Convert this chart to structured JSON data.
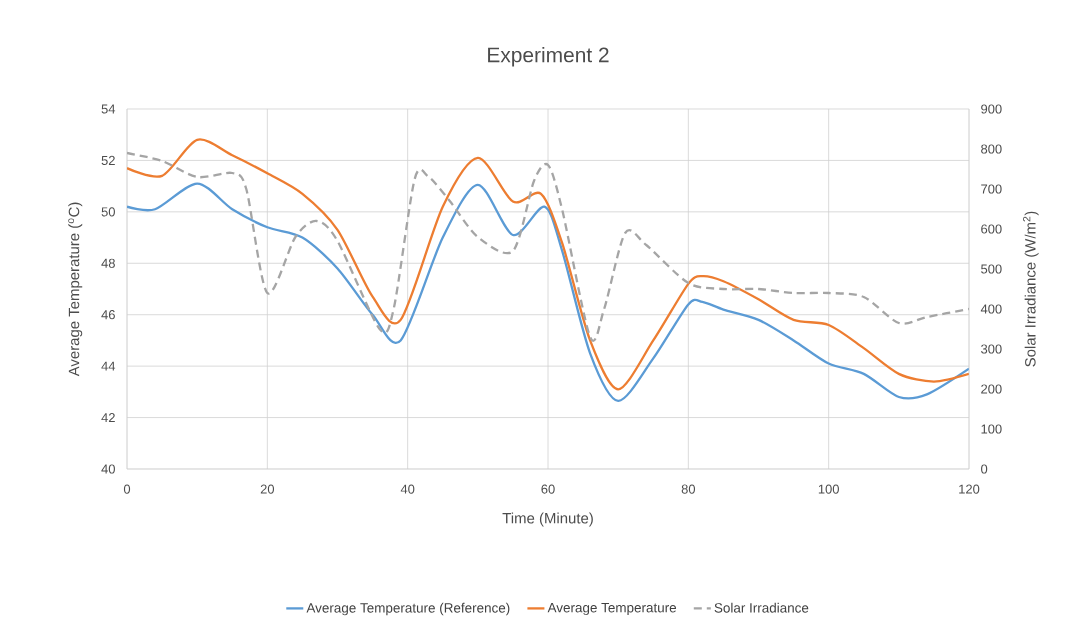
{
  "chart_data": {
    "type": "line",
    "title": "Experiment 2",
    "xlabel": "Time (Minute)",
    "ylabel": "Average Temperature ($^{o}$C)",
    "y2label": "Solar Irradiance (W/m$^{2}$)",
    "xlim": [
      0,
      120
    ],
    "xticks": [
      0,
      20,
      40,
      60,
      80,
      100,
      120
    ],
    "ylim": [
      40,
      54
    ],
    "yticks": [
      40,
      42,
      44,
      46,
      48,
      50,
      52,
      54
    ],
    "y2lim": [
      0,
      900
    ],
    "y2ticks": [
      0,
      100,
      200,
      300,
      400,
      500,
      600,
      700,
      800,
      900
    ],
    "grid": true,
    "legend": "bottom",
    "series": [
      {
        "name": "Average Temperature (Reference)",
        "color": "#5b9bd5",
        "line_style": "solid",
        "x": [
          0,
          4,
          10,
          15,
          20,
          25,
          30,
          35,
          39,
          45,
          50,
          55,
          59.5,
          62,
          66,
          70,
          75,
          80,
          82,
          85,
          90,
          95,
          100,
          105,
          110,
          114,
          120
        ],
        "values": [
          50.2,
          50.1,
          51.1,
          50.1,
          49.4,
          49.0,
          47.8,
          46.0,
          45.0,
          49.0,
          51.05,
          49.1,
          50.2,
          48.5,
          44.5,
          42.65,
          44.3,
          46.4,
          46.5,
          46.2,
          45.8,
          45.0,
          44.1,
          43.7,
          42.8,
          42.9,
          43.9
        ]
      },
      {
        "name": "Average Temperature",
        "color": "#ed7d31",
        "line_style": "solid",
        "x": [
          0,
          5,
          10,
          15,
          20,
          25,
          30,
          35,
          39,
          45,
          50,
          55,
          59,
          62,
          66,
          70,
          75,
          80,
          82,
          85,
          90,
          95,
          100,
          105,
          110,
          115,
          120
        ],
        "values": [
          51.7,
          51.4,
          52.8,
          52.2,
          51.5,
          50.7,
          49.3,
          46.7,
          45.8,
          50.2,
          52.1,
          50.4,
          50.7,
          48.8,
          45.0,
          43.1,
          45.0,
          47.2,
          47.5,
          47.3,
          46.6,
          45.8,
          45.6,
          44.7,
          43.7,
          43.4,
          43.7
        ]
      },
      {
        "name": "Solar Irradiance",
        "color": "#a5a5a5",
        "line_style": "dashed",
        "axis": "y2",
        "x": [
          0,
          5,
          10,
          15,
          17,
          20,
          24,
          27,
          30,
          36,
          38,
          41,
          43,
          46,
          50,
          55,
          58,
          60,
          62,
          66,
          68,
          71,
          74,
          80,
          85,
          90,
          95,
          100,
          105,
          110,
          114,
          120
        ],
        "values": [
          790,
          770,
          730,
          740,
          700,
          440,
          580,
          620,
          570,
          350,
          400,
          725,
          730,
          670,
          580,
          545,
          720,
          760,
          650,
          330,
          400,
          590,
          560,
          465,
          450,
          450,
          440,
          440,
          430,
          365,
          380,
          400
        ]
      }
    ]
  }
}
